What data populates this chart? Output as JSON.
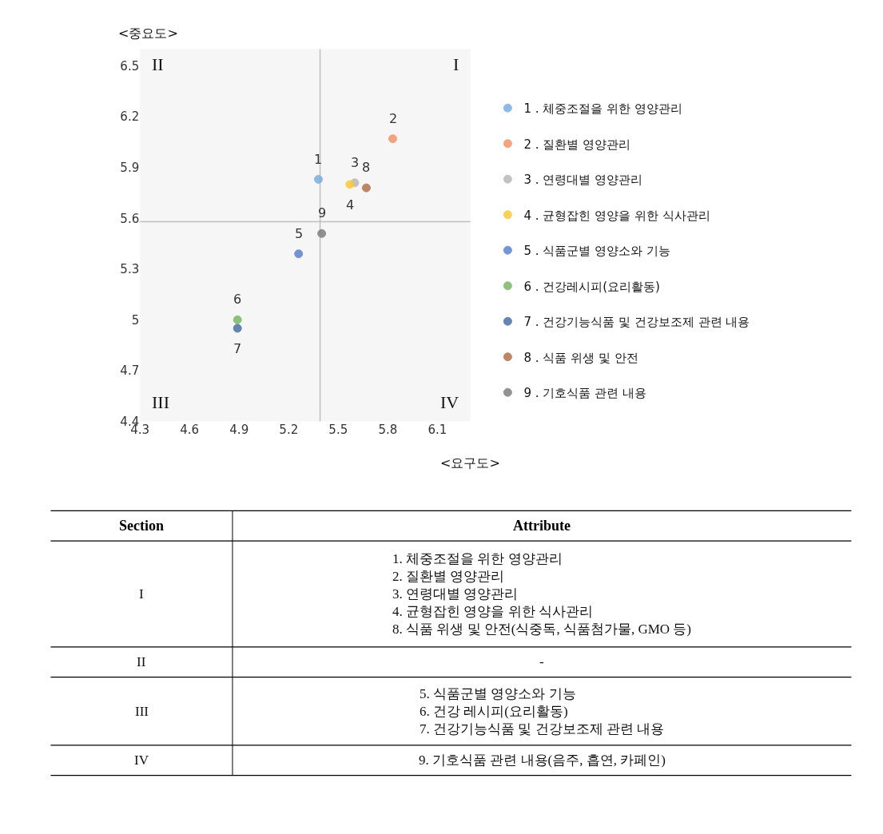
{
  "chart_data": [
    {
      "type": "scatter",
      "xlabel": "<요구도>",
      "ylabel": "<중요도>",
      "xlim": [
        4.3,
        6.3
      ],
      "xticks": [
        4.3,
        4.6,
        4.9,
        5.2,
        5.5,
        5.8,
        6.1
      ],
      "ylim": [
        4.4,
        6.6
      ],
      "yticks": [
        4.4,
        4.7,
        5,
        5.3,
        5.6,
        5.9,
        6.2,
        6.5
      ],
      "grid": false,
      "legend": "right",
      "marker": "circle",
      "series": [
        {
          "name": "1 . 체중조절을 위한 영양관리",
          "color": "#7aaee0",
          "x": [
            5.38
          ],
          "values": [
            5.83
          ]
        },
        {
          "name": "2 . 질환별 영양관리",
          "color": "#f0956a",
          "x": [
            5.83
          ],
          "values": [
            6.07
          ]
        },
        {
          "name": "3 . 연령대별 영양관리",
          "color": "#b8b8b8",
          "x": [
            5.6
          ],
          "values": [
            5.81
          ]
        },
        {
          "name": "4 . 균형잡힌 영양을 위한 식사관리",
          "color": "#fcc936",
          "x": [
            5.57
          ],
          "values": [
            5.8
          ]
        },
        {
          "name": "5 . 식품군별 영양소와 기능",
          "color": "#5b84d0",
          "x": [
            5.26
          ],
          "values": [
            5.39
          ]
        },
        {
          "name": "6 . 건강레시피(요리활동)",
          "color": "#7ab865",
          "x": [
            4.89
          ],
          "values": [
            5.0
          ]
        },
        {
          "name": "7 . 건강기능식품 및 건강보조제 관련 내용",
          "color": "#4a6fa5",
          "x": [
            4.89
          ],
          "values": [
            4.95
          ]
        },
        {
          "name": "8 . 식품 위생 및 안전",
          "color": "#b5714a",
          "x": [
            5.67
          ],
          "values": [
            5.78
          ]
        },
        {
          "name": "9 . 기호식품 관련 내용",
          "color": "#7f7f7f",
          "x": [
            5.4
          ],
          "values": [
            5.51
          ]
        }
      ],
      "ref_lines": [
        {
          "axis": "x",
          "value": 5.39,
          "color": "#bfbfbf"
        },
        {
          "axis": "y",
          "value": 5.58,
          "color": "#bfbfbf"
        }
      ],
      "annotations": [
        {
          "text": "1",
          "x": 5.38,
          "y": 5.83
        },
        {
          "text": "2",
          "x": 5.83,
          "y": 6.07
        },
        {
          "text": "3",
          "x": 5.6,
          "y": 5.81
        },
        {
          "text": "4",
          "x": 5.57,
          "y": 5.8
        },
        {
          "text": "5",
          "x": 5.26,
          "y": 5.39
        },
        {
          "text": "6",
          "x": 4.89,
          "y": 5.0
        },
        {
          "text": "7",
          "x": 4.89,
          "y": 4.95
        },
        {
          "text": "8",
          "x": 5.67,
          "y": 5.78
        },
        {
          "text": "9",
          "x": 5.4,
          "y": 5.51
        },
        "I",
        "II",
        "III",
        "IV"
      ]
    },
    {
      "type": "other",
      "categories": [
        "Section",
        "Attribute"
      ],
      "cell_labels": [
        [
          "I",
          "1. 체중조절을 위한 영양관리\n2. 질환별 영양관리\n3. 연령대별 영양관리\n4. 균형잡힌 영양을 위한 식사관리\n8. 식품 위생 및 안전(식중독, 식품첨가물, GMO 등)"
        ],
        [
          "II",
          "-"
        ],
        [
          "III",
          "5. 식품군별 영양소와 기능\n6. 건강 레시피(요리활동)\n7. 건강기능식품 및 건강보조제 관련 내용"
        ],
        [
          "IV",
          "9. 기호식품 관련 내용(음주, 흡연, 카페인)"
        ]
      ]
    }
  ]
}
